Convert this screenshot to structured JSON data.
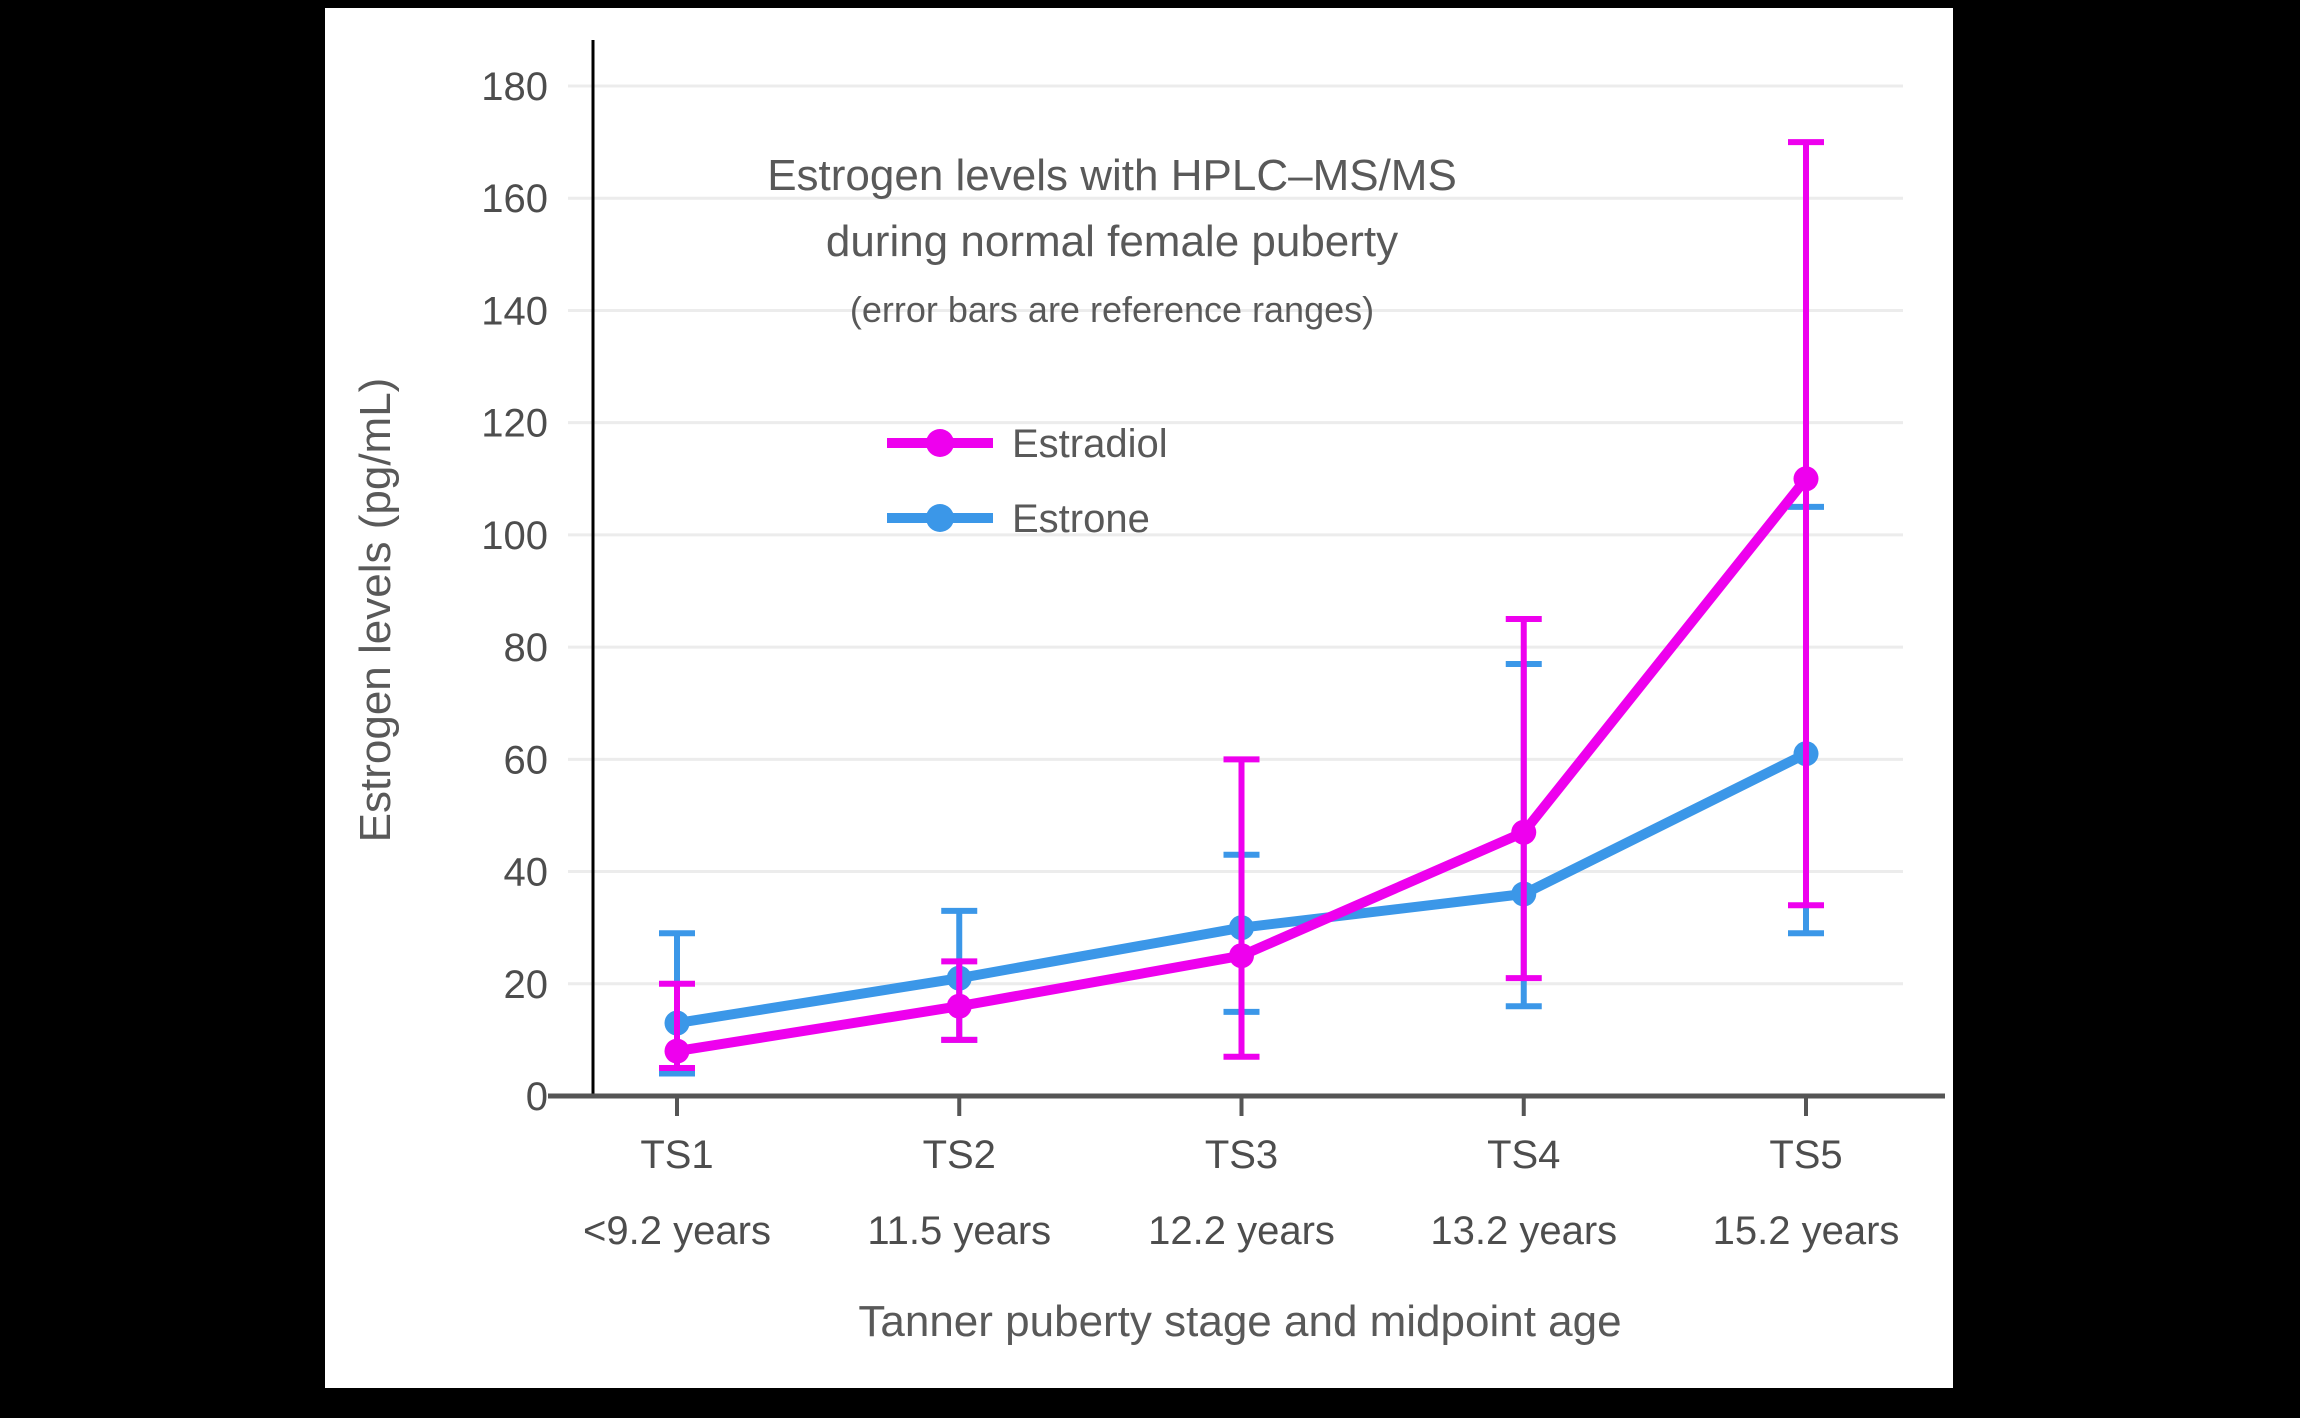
{
  "meta": {
    "letterbox_color": "#000000",
    "canvas_color": "#ffffff",
    "grid_color": "#ececec",
    "axis_color": "#555555",
    "y_axis_line_color": "#000000",
    "text_color": "#595959"
  },
  "chart_data": {
    "type": "line",
    "title": "Estrogen levels with HPLC–MS/MS",
    "title_line2": "during normal female puberty",
    "subtitle": "(error bars are reference ranges)",
    "xlabel": "Tanner puberty stage and midpoint age",
    "ylabel": "Estrogen levels (pg/mL)",
    "categories": [
      "TS1",
      "TS2",
      "TS3",
      "TS4",
      "TS5"
    ],
    "category_sublabels": [
      "<9.2 years",
      "11.5 years",
      "12.2 years",
      "13.2 years",
      "15.2 years"
    ],
    "ylim": [
      0,
      180
    ],
    "ytick_step": 20,
    "yticks": [
      0,
      20,
      40,
      60,
      80,
      100,
      120,
      140,
      160,
      180
    ],
    "grid": true,
    "legend_position": "inside-upper-left",
    "error_bar_meaning": "reference ranges",
    "series": [
      {
        "name": "Estradiol",
        "color": "#ee00ee",
        "values": [
          8,
          16,
          25,
          47,
          110
        ],
        "range_low": [
          5,
          10,
          7,
          21,
          34
        ],
        "range_high": [
          20,
          24,
          60,
          85,
          170
        ],
        "z": 2
      },
      {
        "name": "Estrone",
        "color": "#3b97e8",
        "values": [
          13,
          21,
          30,
          36,
          61
        ],
        "range_low": [
          4,
          10,
          15,
          16,
          29
        ],
        "range_high": [
          29,
          33,
          43,
          77,
          105
        ],
        "z": 1
      }
    ]
  }
}
